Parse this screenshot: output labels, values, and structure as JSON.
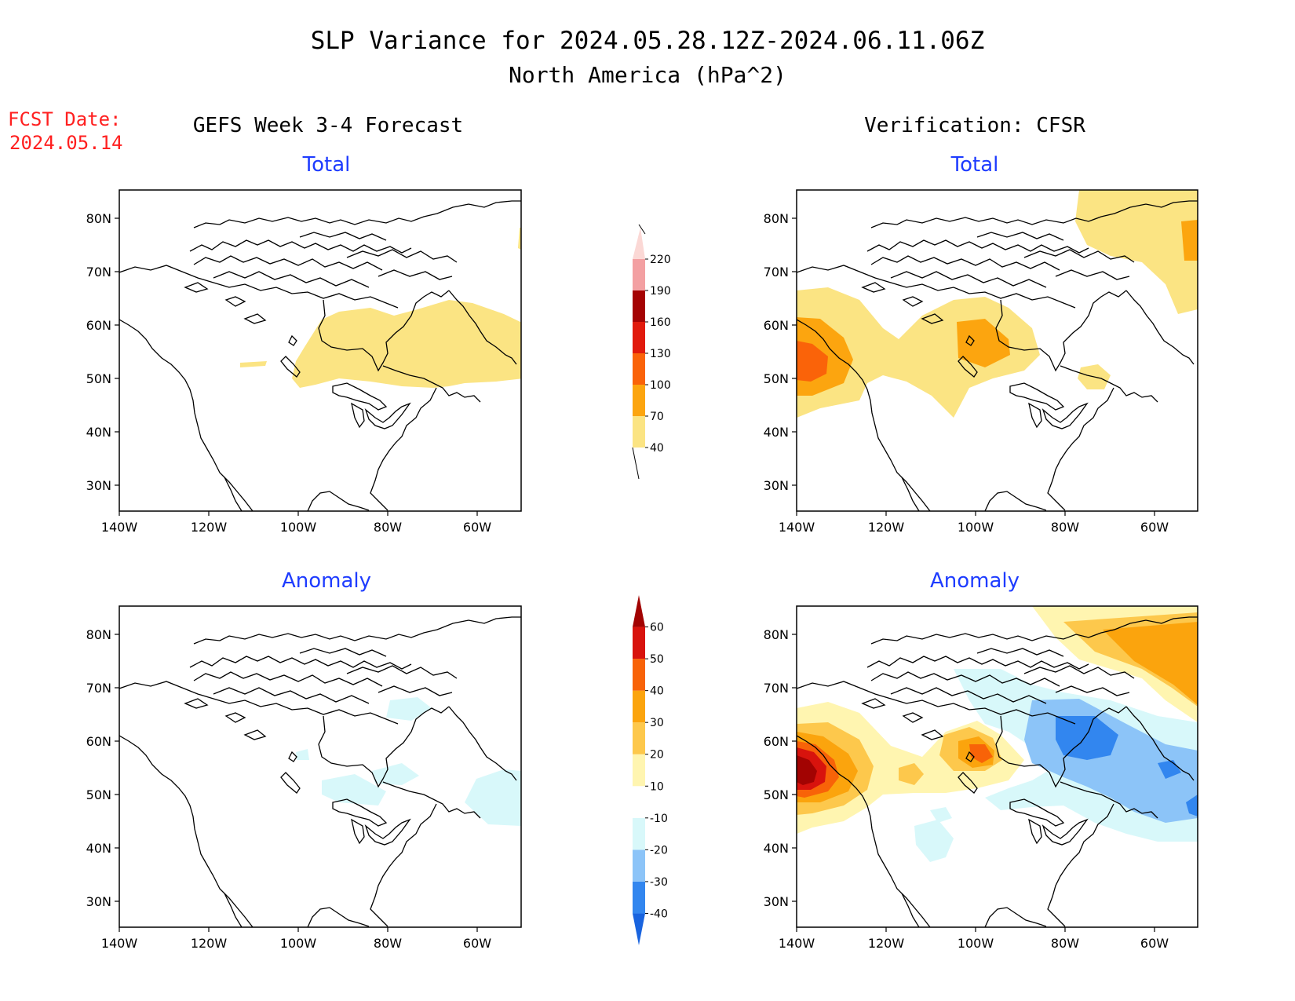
{
  "header": {
    "title_line1": "SLP Variance for 2024.05.28.12Z-2024.06.11.06Z",
    "title_line2": "North America (hPa^2)"
  },
  "fcst": {
    "label": "FCST Date:",
    "date": "2024.05.14"
  },
  "columns": {
    "left": "GEFS Week 3-4 Forecast",
    "right": "Verification: CFSR"
  },
  "panel_titles": {
    "total": "Total",
    "anomaly": "Anomaly"
  },
  "axes": {
    "lat_labels": [
      "80N",
      "70N",
      "60N",
      "50N",
      "40N",
      "30N"
    ],
    "lon_labels": [
      "140W",
      "120W",
      "100W",
      "80W",
      "60W"
    ]
  },
  "colorbars": {
    "total": {
      "labels": [
        "40",
        "70",
        "100",
        "130",
        "160",
        "190",
        "220"
      ],
      "colors": [
        "#fbe483",
        "#fca50f",
        "#fa6309",
        "#e11a0c",
        "#a50303",
        "#f3a0a2",
        "#fbd8d5"
      ]
    },
    "anomaly": {
      "labels": [
        "-40",
        "-30",
        "-20",
        "-10",
        "10",
        "20",
        "30",
        "40",
        "50",
        "60"
      ],
      "colors": [
        "#1964df",
        "#3286ef",
        "#8cc4f8",
        "#d8f8fa",
        "#ffffff",
        "#fff5b0",
        "#fdc84c",
        "#fba40d",
        "#f86308",
        "#d8130d",
        "#a20302"
      ]
    }
  },
  "colors": {
    "title_text": "#000000",
    "panel_title_blue": "#1e3cff",
    "fcst_red": "#ff2020",
    "coast": "#000000"
  }
}
